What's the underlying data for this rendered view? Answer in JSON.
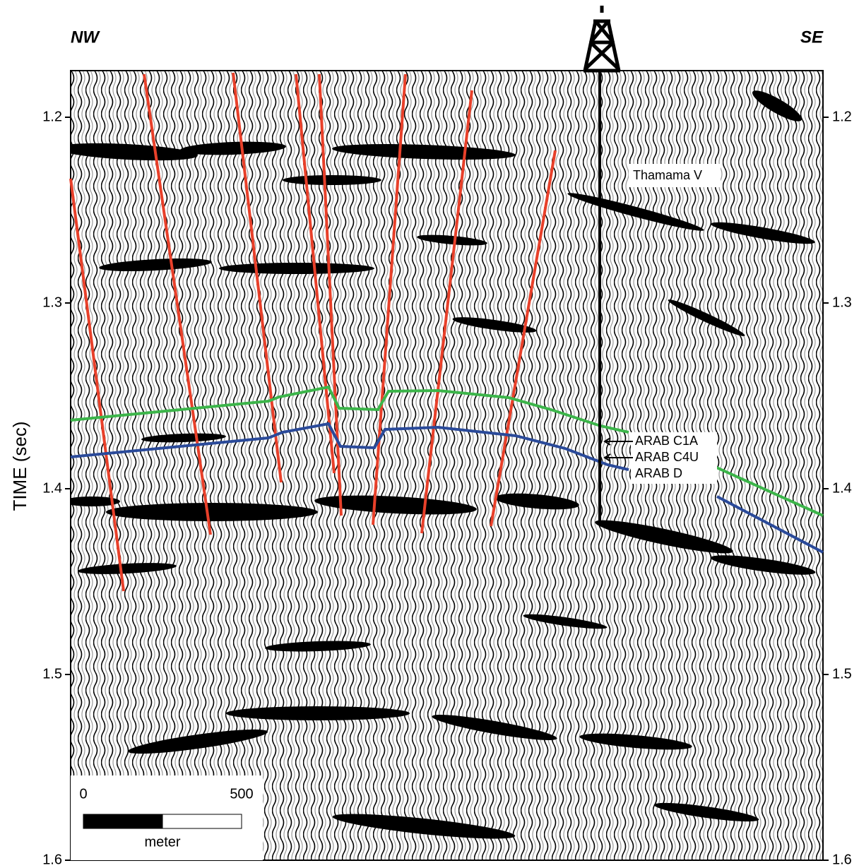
{
  "header": {
    "left": "NW",
    "right": "SE"
  },
  "axis": {
    "label": "TIME (sec)",
    "ticks": [
      "1.2",
      "1.3",
      "1.4",
      "1.5",
      "1.6"
    ]
  },
  "annotations": {
    "well_top": "Thamama V",
    "horizons": [
      "ARAB C1A",
      "ARAB C4U",
      "ARAB D"
    ]
  },
  "scale_bar": {
    "start": "0",
    "end": "500",
    "unit": "meter"
  }
}
